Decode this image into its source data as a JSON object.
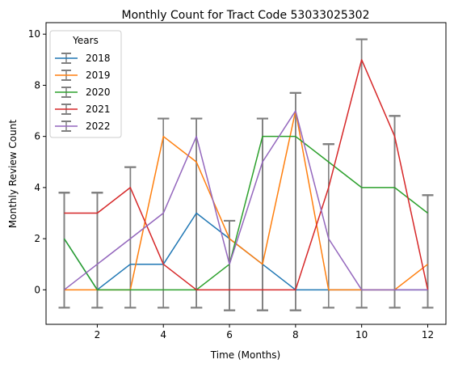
{
  "chart_data": {
    "type": "line",
    "title": "Monthly Count for Tract Code 53033025302",
    "xlabel": "Time (Months)",
    "ylabel": "Monthly Review Count",
    "x": [
      1,
      2,
      3,
      4,
      5,
      6,
      7,
      8,
      9,
      10,
      11,
      12
    ],
    "xlim": [
      0.45,
      12.55
    ],
    "ylim": [
      -1.35,
      10.45
    ],
    "xticks": [
      2,
      4,
      6,
      8,
      10,
      12
    ],
    "yticks": [
      0,
      2,
      4,
      6,
      8,
      10
    ],
    "grid": false,
    "legend": {
      "title": "Years",
      "position": "top-left"
    },
    "errorbar_color": "#808080",
    "series": [
      {
        "name": "2018",
        "color": "#1f77b4",
        "values": [
          2,
          0,
          1,
          1,
          3,
          2,
          1,
          0,
          0,
          0,
          0,
          0
        ]
      },
      {
        "name": "2019",
        "color": "#ff7f0e",
        "values": [
          0,
          0,
          0,
          6,
          5,
          2,
          1,
          7,
          0,
          0,
          0,
          1
        ]
      },
      {
        "name": "2020",
        "color": "#2ca02c",
        "values": [
          2,
          0,
          0,
          0,
          0,
          1,
          6,
          6,
          5,
          4,
          4,
          3
        ]
      },
      {
        "name": "2021",
        "color": "#d62728",
        "values": [
          3,
          3,
          4,
          1,
          0,
          0,
          0,
          0,
          4,
          9,
          6,
          0
        ]
      },
      {
        "name": "2022",
        "color": "#9467bd",
        "values": [
          0,
          1,
          2,
          3,
          6,
          1,
          5,
          7,
          2,
          0,
          0,
          0
        ]
      }
    ],
    "error_bands": {
      "x": [
        1,
        2,
        3,
        4,
        5,
        6,
        7,
        8,
        9,
        10,
        11,
        12
      ],
      "lower": [
        -0.7,
        -0.7,
        -0.7,
        -0.7,
        -0.7,
        -0.8,
        -0.8,
        -0.8,
        -0.7,
        -0.7,
        -0.7,
        -0.7
      ],
      "upper": [
        3.8,
        3.8,
        4.8,
        6.7,
        6.7,
        2.7,
        6.7,
        7.7,
        5.7,
        9.8,
        6.8,
        3.7
      ]
    }
  }
}
